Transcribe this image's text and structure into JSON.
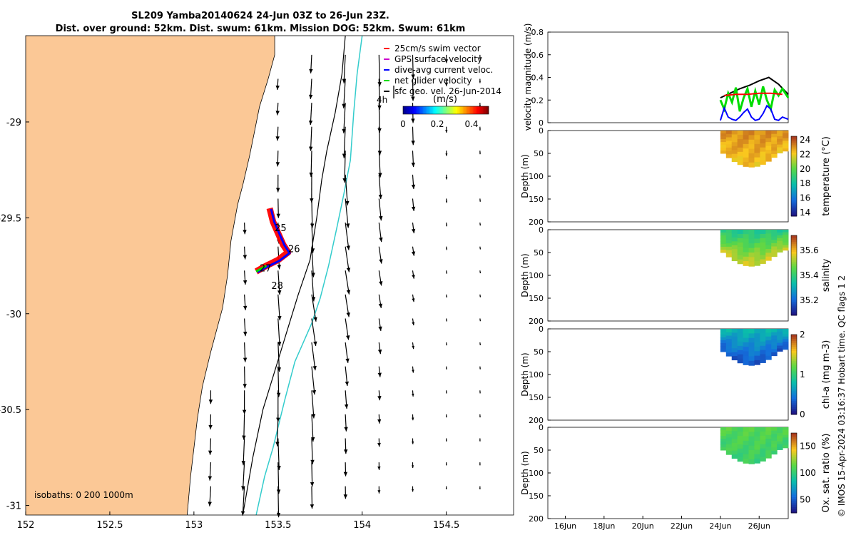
{
  "title": {
    "line1": "SL209 Yamba20140624 24-Jun 03Z to 26-Jun 23Z.",
    "line2": "Dist. over ground: 52km. Dist. swum: 61km. Mission DOG: 52km. Swum: 61km"
  },
  "credit": "© IMOS 15-Apr-2024 03:16:37 Hobart time. QC flags 1  2",
  "colors": {
    "land": "#fbc896",
    "swim": "#ff0000",
    "gps": "#cc00cc",
    "current": "#0000ff",
    "net": "#00dd00",
    "isobath_200": "#000000",
    "isobath_1000": "#33cccc"
  },
  "chart_data": [
    {
      "type": "map",
      "x_ticks": [
        "152",
        "152.5",
        "153",
        "153.5",
        "154",
        "154.5"
      ],
      "y_ticks": [
        "-29",
        "-29.5",
        "-30",
        "-30.5",
        "-31"
      ],
      "xlim": [
        152,
        154.9
      ],
      "ylim": [
        -31.05,
        -28.55
      ],
      "legend": {
        "position": "top-right",
        "entries": [
          "25cm/s swim vector",
          "GPS surface velocity",
          "dive-avg current veloc.",
          "net glider velocity",
          "sfc geo. vel. 26-Jun-2014"
        ]
      },
      "label_4h": "4h",
      "colorbar": {
        "label": "(m/s)",
        "ticks": [
          "0",
          "0.2",
          "0.4"
        ],
        "range": [
          0,
          0.5
        ]
      },
      "isobath_label": "isobaths: 0   200  1000m",
      "day_labels": [
        {
          "text": "25",
          "lon": 153.48,
          "lat": -29.57
        },
        {
          "text": "26",
          "lon": 153.56,
          "lat": -29.68
        },
        {
          "text": "27",
          "lon": 153.39,
          "lat": -29.78
        },
        {
          "text": "28",
          "lon": 153.46,
          "lat": -29.87
        }
      ]
    },
    {
      "type": "line",
      "ylabel": "velocity magnitude (m/s)",
      "ylim": [
        0,
        0.8
      ],
      "y_ticks": [
        "0",
        "0.2",
        "0.4",
        "0.6",
        "0.8"
      ],
      "xlim": [
        15.1,
        27.5
      ],
      "series": [
        {
          "color": "#000000",
          "x": [
            24.0,
            24.5,
            25.0,
            25.5,
            26.0,
            26.5,
            27.0,
            27.5
          ],
          "y": [
            0.22,
            0.26,
            0.3,
            0.33,
            0.37,
            0.4,
            0.34,
            0.25
          ]
        },
        {
          "color": "#00dd00",
          "x": [
            24.0,
            24.2,
            24.4,
            24.6,
            24.8,
            25.0,
            25.2,
            25.4,
            25.6,
            25.8,
            26.0,
            26.2,
            26.4,
            26.6,
            26.8,
            27.0,
            27.2,
            27.5
          ],
          "y": [
            0.2,
            0.12,
            0.26,
            0.18,
            0.31,
            0.1,
            0.22,
            0.3,
            0.14,
            0.28,
            0.16,
            0.32,
            0.2,
            0.12,
            0.29,
            0.24,
            0.3,
            0.22
          ]
        },
        {
          "color": "#0000ff",
          "x": [
            24.0,
            24.2,
            24.4,
            24.6,
            24.8,
            25.0,
            25.2,
            25.4,
            25.6,
            25.8,
            26.0,
            26.2,
            26.4,
            26.6,
            26.8,
            27.0,
            27.2,
            27.5
          ],
          "y": [
            0.02,
            0.13,
            0.05,
            0.03,
            0.02,
            0.05,
            0.09,
            0.12,
            0.05,
            0.02,
            0.03,
            0.08,
            0.15,
            0.12,
            0.03,
            0.02,
            0.05,
            0.03
          ]
        },
        {
          "color": "#ff0000",
          "x": [
            24.2,
            24.8,
            25.4,
            26.0,
            26.6,
            27.2
          ],
          "y": [
            0.24,
            0.25,
            0.25,
            0.26,
            0.26,
            0.25
          ]
        }
      ]
    },
    {
      "type": "heatmap",
      "ylabel": "Depth (m)",
      "cb_label": "temperature (°C)",
      "cb_ticks": [
        "14",
        "16",
        "18",
        "20",
        "22",
        "24"
      ],
      "vmin": 13.5,
      "vmax": 24.5,
      "ylim": [
        0,
        200
      ],
      "y_ticks": [
        "0",
        "50",
        "100",
        "150",
        "200"
      ],
      "top_value": 23.2,
      "bottom_value": 22.4
    },
    {
      "type": "heatmap",
      "ylabel": "Depth (m)",
      "cb_label": "salinity",
      "cb_ticks": [
        "35.2",
        "35.4",
        "35.6"
      ],
      "vmin": 35.08,
      "vmax": 35.72,
      "ylim": [
        0,
        200
      ],
      "y_ticks": [
        "0",
        "50",
        "100",
        "150",
        "200"
      ],
      "top_value": 35.38,
      "bottom_value": 35.55
    },
    {
      "type": "heatmap",
      "ylabel": "Depth (m)",
      "cb_label": "chl-a (mg m-3)",
      "cb_ticks": [
        "0",
        "1",
        "2"
      ],
      "vmin": 0,
      "vmax": 2,
      "ylim": [
        0,
        200
      ],
      "y_ticks": [
        "0",
        "50",
        "100",
        "150",
        "200"
      ],
      "top_value": 0.75,
      "bottom_value": 0.3
    },
    {
      "type": "heatmap",
      "ylabel": "Depth (m)",
      "cb_label": "Ox. sat. ratio (%)",
      "cb_ticks": [
        "50",
        "100",
        "150"
      ],
      "vmin": 25,
      "vmax": 175,
      "ylim": [
        0,
        200
      ],
      "y_ticks": [
        "0",
        "50",
        "100",
        "150",
        "200"
      ],
      "top_value": 112,
      "bottom_value": 104
    }
  ],
  "time_axis": {
    "ticks": [
      "16Jun",
      "18Jun",
      "20Jun",
      "22Jun",
      "24Jun",
      "26Jun"
    ],
    "tick_days": [
      16,
      18,
      20,
      22,
      24,
      26
    ],
    "xlim": [
      15.1,
      27.5
    ]
  }
}
